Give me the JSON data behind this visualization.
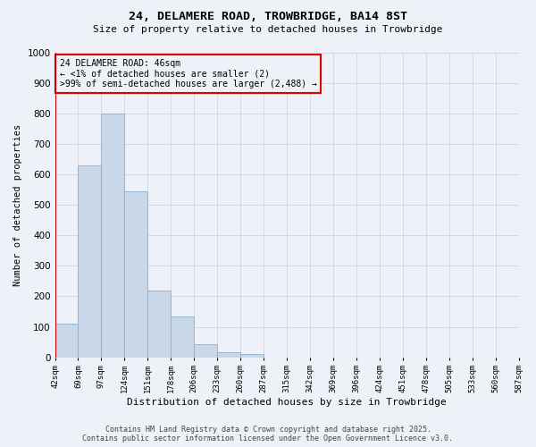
{
  "title": "24, DELAMERE ROAD, TROWBRIDGE, BA14 8ST",
  "subtitle": "Size of property relative to detached houses in Trowbridge",
  "xlabel": "Distribution of detached houses by size in Trowbridge",
  "ylabel": "Number of detached properties",
  "bar_values": [
    110,
    630,
    800,
    545,
    220,
    135,
    42,
    15,
    10,
    0,
    0,
    0,
    0,
    0,
    0,
    0,
    0,
    0,
    0,
    0
  ],
  "x_labels": [
    "42sqm",
    "69sqm",
    "97sqm",
    "124sqm",
    "151sqm",
    "178sqm",
    "206sqm",
    "233sqm",
    "260sqm",
    "287sqm",
    "315sqm",
    "342sqm",
    "369sqm",
    "396sqm",
    "424sqm",
    "451sqm",
    "478sqm",
    "505sqm",
    "533sqm",
    "560sqm",
    "587sqm"
  ],
  "bar_color": "#c8d8e8",
  "bar_edge_color": "#8ab0cc",
  "annotation_box_color": "#dd0000",
  "annotation_text_line1": "24 DELAMERE ROAD: 46sqm",
  "annotation_text_line2": "← <1% of detached houses are smaller (2)",
  "annotation_text_line3": ">99% of semi-detached houses are larger (2,488) →",
  "marker_line_color": "#cc0000",
  "ylim": [
    0,
    1000
  ],
  "yticks": [
    0,
    100,
    200,
    300,
    400,
    500,
    600,
    700,
    800,
    900,
    1000
  ],
  "footer_line1": "Contains HM Land Registry data © Crown copyright and database right 2025.",
  "footer_line2": "Contains public sector information licensed under the Open Government Licence v3.0.",
  "bg_color": "#eef2f8",
  "grid_color": "#c8d0dc",
  "font_family": "monospace"
}
